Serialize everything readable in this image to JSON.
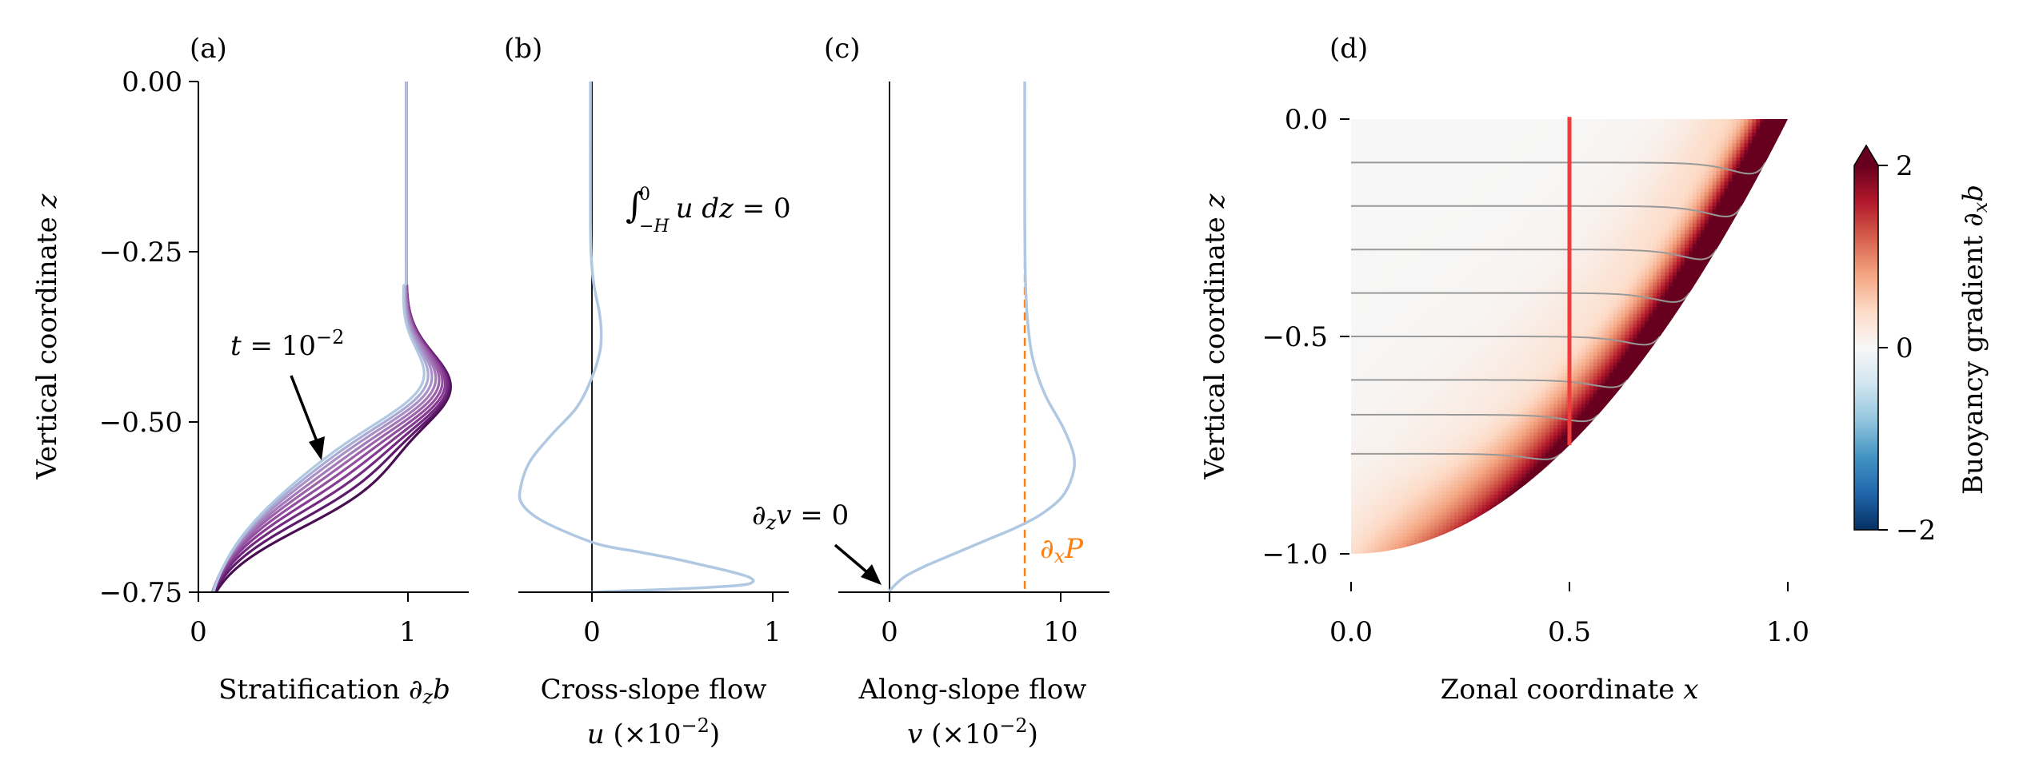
{
  "panels": {
    "a": {
      "label": "(a)"
    },
    "b": {
      "label": "(b)"
    },
    "c": {
      "label": "(c)"
    },
    "d": {
      "label": "(d)"
    }
  },
  "chart_data": [
    {
      "type": "line",
      "panel": "(a)",
      "xlabel": "Stratification ∂_z b",
      "ylabel": "Vertical coordinate z",
      "xlim": [
        0,
        1.3
      ],
      "ylim": [
        -0.75,
        0.0
      ],
      "xticks": [
        0,
        1
      ],
      "yticks": [
        0.0,
        -0.25,
        -0.5,
        -0.75
      ],
      "xtick_labels": [
        "0",
        "1"
      ],
      "ytick_labels": [
        "0.00",
        "−0.25",
        "−0.50",
        "−0.75"
      ],
      "annotation": "t = 10^−2",
      "series_count": 10,
      "colors": [
        "#4a0e52",
        "#5e1a6b",
        "#742a80",
        "#853c92",
        "#934f9f",
        "#9c63ab",
        "#a379b8",
        "#a890c6",
        "#abaad4",
        "#b0c8e2"
      ],
      "profile_params": [
        {
          "zc": -0.655,
          "w": 0.04
        },
        {
          "zc": -0.643,
          "w": 0.043
        },
        {
          "zc": -0.632,
          "w": 0.046
        },
        {
          "zc": -0.622,
          "w": 0.049
        },
        {
          "zc": -0.613,
          "w": 0.052
        },
        {
          "zc": -0.605,
          "w": 0.055
        },
        {
          "zc": -0.598,
          "w": 0.058
        },
        {
          "zc": -0.591,
          "w": 0.061
        },
        {
          "zc": -0.585,
          "w": 0.064
        },
        {
          "zc": -0.579,
          "w": 0.067
        }
      ]
    },
    {
      "type": "line",
      "panel": "(b)",
      "xlabel_line1": "Cross-slope flow",
      "xlabel_line2": "u (×10^−2)",
      "xlim": [
        -0.4,
        1.1
      ],
      "ylim": [
        -0.75,
        0.0
      ],
      "xticks": [
        0,
        1
      ],
      "xtick_labels": [
        "0",
        "1"
      ],
      "annotation": "∫_{−H}^{0} u dz = 0",
      "color": "#b0c8e2",
      "x": [
        0.0,
        0.0,
        0.005,
        0.02,
        0.05,
        0.06,
        0.05,
        0.0,
        -0.08,
        -0.22,
        -0.34,
        -0.39,
        -0.38,
        -0.3,
        -0.15,
        0.05,
        0.25,
        0.45,
        0.62,
        0.78,
        0.88,
        0.9,
        0.82,
        0.5,
        0.2,
        0.0
      ],
      "z": [
        0.0,
        -0.2,
        -0.26,
        -0.3,
        -0.34,
        -0.37,
        -0.4,
        -0.44,
        -0.48,
        -0.52,
        -0.56,
        -0.6,
        -0.62,
        -0.64,
        -0.66,
        -0.68,
        -0.69,
        -0.7,
        -0.71,
        -0.72,
        -0.728,
        -0.735,
        -0.74,
        -0.745,
        -0.748,
        -0.75
      ]
    },
    {
      "type": "line",
      "panel": "(c)",
      "xlabel_line1": "Along-slope flow",
      "xlabel_line2": "v (×10^−2)",
      "xlim": [
        -3,
        13
      ],
      "ylim": [
        -0.75,
        0.0
      ],
      "xticks": [
        0,
        10
      ],
      "xtick_labels": [
        "0",
        "10"
      ],
      "annotation_flow": "∂_z v = 0",
      "annotation_pressure": "∂_x P",
      "pressure_x": 8.0,
      "pressure_color": "#ff7f0e",
      "color": "#b0c8e2",
      "x": [
        8.0,
        8.0,
        8.05,
        8.2,
        8.5,
        9.2,
        10.3,
        10.9,
        10.8,
        10.2,
        9.0,
        7.5,
        5.6,
        3.7,
        2.1,
        1.0,
        0.4,
        0.1,
        0.0
      ],
      "z": [
        0.0,
        -0.2,
        -0.3,
        -0.36,
        -0.41,
        -0.46,
        -0.51,
        -0.55,
        -0.58,
        -0.61,
        -0.635,
        -0.655,
        -0.675,
        -0.695,
        -0.712,
        -0.726,
        -0.738,
        -0.746,
        -0.75
      ]
    },
    {
      "type": "heatmap",
      "panel": "(d)",
      "xlabel": "Zonal coordinate x",
      "ylabel": "Vertical coordinate z",
      "xlim": [
        0.0,
        1.0
      ],
      "ylim": [
        -1.08,
        0.05
      ],
      "xticks": [
        0.0,
        0.5,
        1.0
      ],
      "yticks": [
        0.0,
        -0.5,
        -1.0
      ],
      "xtick_labels": [
        "0.0",
        "0.5",
        "1.0"
      ],
      "ytick_labels": [
        "0.0",
        "−0.5",
        "−1.0"
      ],
      "bottom_boundary": "z = x^2 - 1",
      "colormap": "RdBu_r",
      "colorbar_label": "Buoyancy gradient ∂_x b",
      "colorbar_ticks": [
        2,
        0,
        -2
      ],
      "colorbar_tick_labels": [
        "2",
        "0",
        "−2"
      ],
      "colorbar_range": [
        -2,
        2
      ],
      "vertical_line_x": 0.5,
      "vertical_line_color": "#f03c3c",
      "isopycnal_levels": [
        -0.1,
        -0.2,
        -0.3,
        -0.4,
        -0.5,
        -0.6,
        -0.68,
        -0.77
      ],
      "contour_color": "#999999"
    }
  ]
}
